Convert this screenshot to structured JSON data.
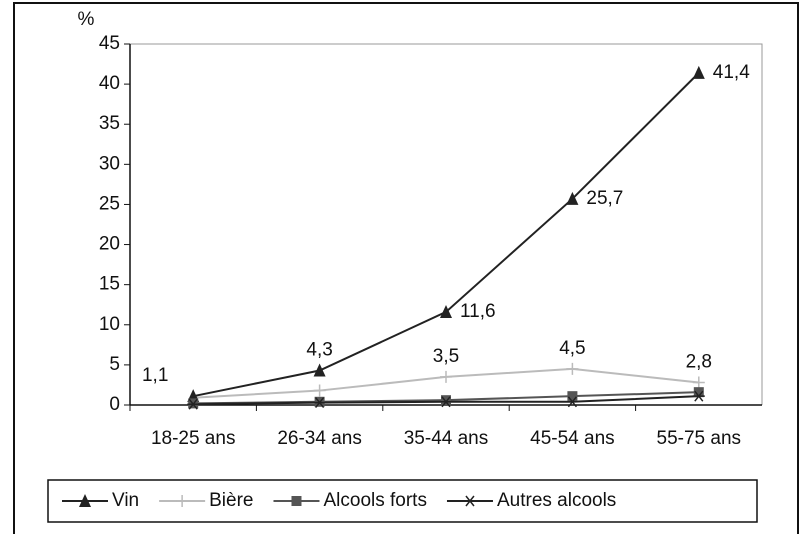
{
  "chart_data": {
    "type": "line",
    "y_axis_label": "%",
    "categories": [
      "18-25 ans",
      "26-34 ans",
      "35-44 ans",
      "45-54 ans",
      "55-75 ans"
    ],
    "series": [
      {
        "name": "Vin",
        "color": "#222222",
        "marker": "triangle",
        "values": [
          1.1,
          4.3,
          11.6,
          25.7,
          41.4
        ],
        "value_labels": [
          "1,1",
          "4,3",
          "11,6",
          "25,7",
          "41,4"
        ]
      },
      {
        "name": "Bière",
        "color": "#bbbbbb",
        "marker": "plus",
        "values": [
          0.9,
          1.8,
          3.5,
          4.5,
          2.8
        ],
        "value_labels": [
          null,
          null,
          "3,5",
          "4,5",
          "2,8"
        ]
      },
      {
        "name": "Alcools forts",
        "color": "#555555",
        "marker": "square",
        "values": [
          0.2,
          0.4,
          0.6,
          1.1,
          1.6
        ]
      },
      {
        "name": "Autres alcools",
        "color": "#222222",
        "marker": "star",
        "values": [
          0.1,
          0.3,
          0.4,
          0.4,
          1.1
        ]
      }
    ],
    "ylim": [
      0,
      45
    ],
    "yticks": [
      0,
      5,
      10,
      15,
      20,
      25,
      30,
      35,
      40,
      45
    ],
    "grid": false,
    "legend": "bottom"
  }
}
